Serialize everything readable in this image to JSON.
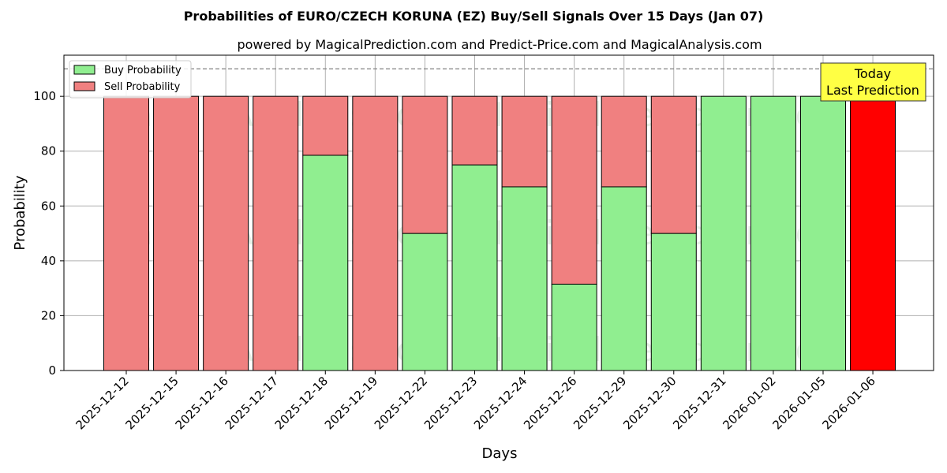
{
  "chart_data": {
    "type": "bar",
    "stacked": true,
    "title": "Probabilities of EURO/CZECH KORUNA (EZ) Buy/Sell Signals Over 15 Days (Jan 07)",
    "subtitle": "powered by MagicalPrediction.com and Predict-Price.com and MagicalAnalysis.com",
    "xlabel": "Days",
    "ylabel": "Probability",
    "ylim": [
      0,
      115
    ],
    "yticks": [
      0,
      20,
      40,
      60,
      80,
      100
    ],
    "grid": true,
    "legend_position": "top-left",
    "reference_line": 110,
    "categories": [
      "2025-12-12",
      "2025-12-15",
      "2025-12-16",
      "2025-12-17",
      "2025-12-18",
      "2025-12-19",
      "2025-12-22",
      "2025-12-23",
      "2025-12-24",
      "2025-12-26",
      "2025-12-29",
      "2025-12-30",
      "2025-12-31",
      "2026-01-02",
      "2026-01-05",
      "2026-01-06"
    ],
    "series": [
      {
        "name": "Buy Probability",
        "color": "#90ee90",
        "values": [
          0,
          0,
          0,
          0,
          78.5,
          0,
          50,
          75,
          67,
          31.5,
          67,
          50,
          100,
          100,
          100,
          0
        ]
      },
      {
        "name": "Sell Probability",
        "color": "#f08080",
        "values": [
          100,
          100,
          100,
          100,
          21.5,
          100,
          50,
          25,
          33,
          68.5,
          33,
          50,
          0,
          0,
          0,
          100
        ]
      }
    ],
    "highlight": {
      "index": 15,
      "color": "#ff0000"
    },
    "annotation": {
      "lines": [
        "Today",
        "Last Prediction"
      ],
      "background": "#ffff44"
    },
    "watermarks": [
      "MagicalAnalysis.com",
      "MagicalPrediction.com"
    ]
  }
}
